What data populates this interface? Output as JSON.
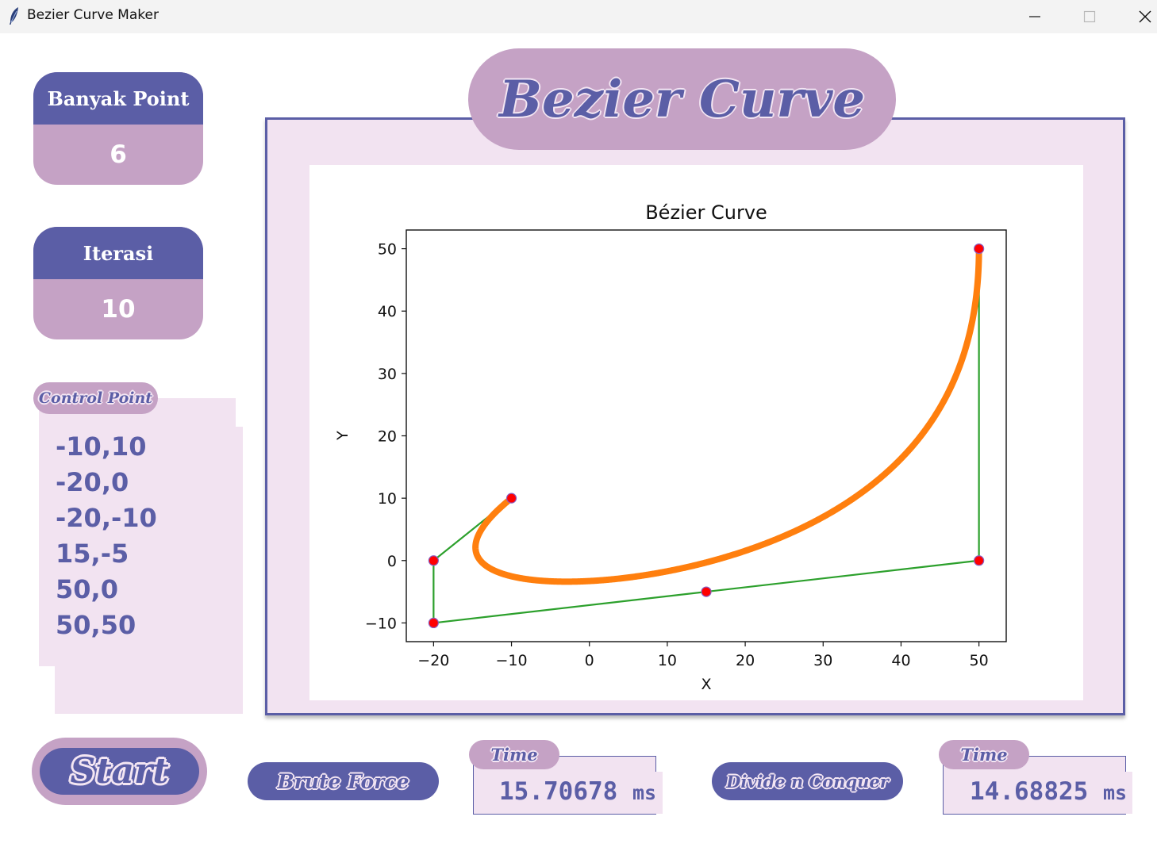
{
  "window": {
    "title": "Bezier Curve Maker",
    "controls": [
      "minimize-icon",
      "maximize-icon",
      "close-icon"
    ]
  },
  "colors": {
    "primary": "#5b5ea6",
    "accent": "#c5a2c5",
    "panel": "#f2e3f1",
    "curve": "#ff7f0e",
    "control_line": "#2ca02c",
    "control_point": "#ff0000"
  },
  "sidebar": {
    "points_label": "Banyak Point",
    "points_value": "6",
    "iterations_label": "Iterasi",
    "iterations_value": "10",
    "control_points_label": "Control Point",
    "control_points": [
      "-10,10",
      "-20,0",
      "-20,-10",
      "15,-5",
      "50,0",
      "50,50"
    ]
  },
  "header": {
    "title": "Bezier Curve"
  },
  "controls": {
    "start_label": "Start",
    "brute_force_label": "Brute Force",
    "brute_force_time_label": "Time",
    "brute_force_time": "15.70678",
    "divide_conquer_label": "Divide n Conquer",
    "divide_conquer_time_label": "Time",
    "divide_conquer_time": "14.68825",
    "time_unit": "ms"
  },
  "chart_data": {
    "type": "line",
    "title": "Bézier Curve",
    "xlabel": "X",
    "ylabel": "Y",
    "xlim": [
      -23.5,
      53.5
    ],
    "ylim": [
      -13,
      53
    ],
    "xticks": [
      -20,
      -10,
      0,
      10,
      20,
      30,
      40,
      50
    ],
    "yticks": [
      -10,
      0,
      10,
      20,
      30,
      40,
      50
    ],
    "grid": false,
    "series": [
      {
        "kind": "control-polygon",
        "color": "#2ca02c",
        "points": [
          [
            -10,
            10
          ],
          [
            -20,
            0
          ],
          [
            -20,
            -10
          ],
          [
            15,
            -5
          ],
          [
            50,
            0
          ],
          [
            50,
            50
          ]
        ]
      },
      {
        "kind": "bezier-curve",
        "color": "#ff7f0e",
        "iterations": 10,
        "control_points": [
          [
            -10,
            10
          ],
          [
            -20,
            0
          ],
          [
            -20,
            -10
          ],
          [
            15,
            -5
          ],
          [
            50,
            0
          ],
          [
            50,
            50
          ]
        ]
      }
    ]
  }
}
